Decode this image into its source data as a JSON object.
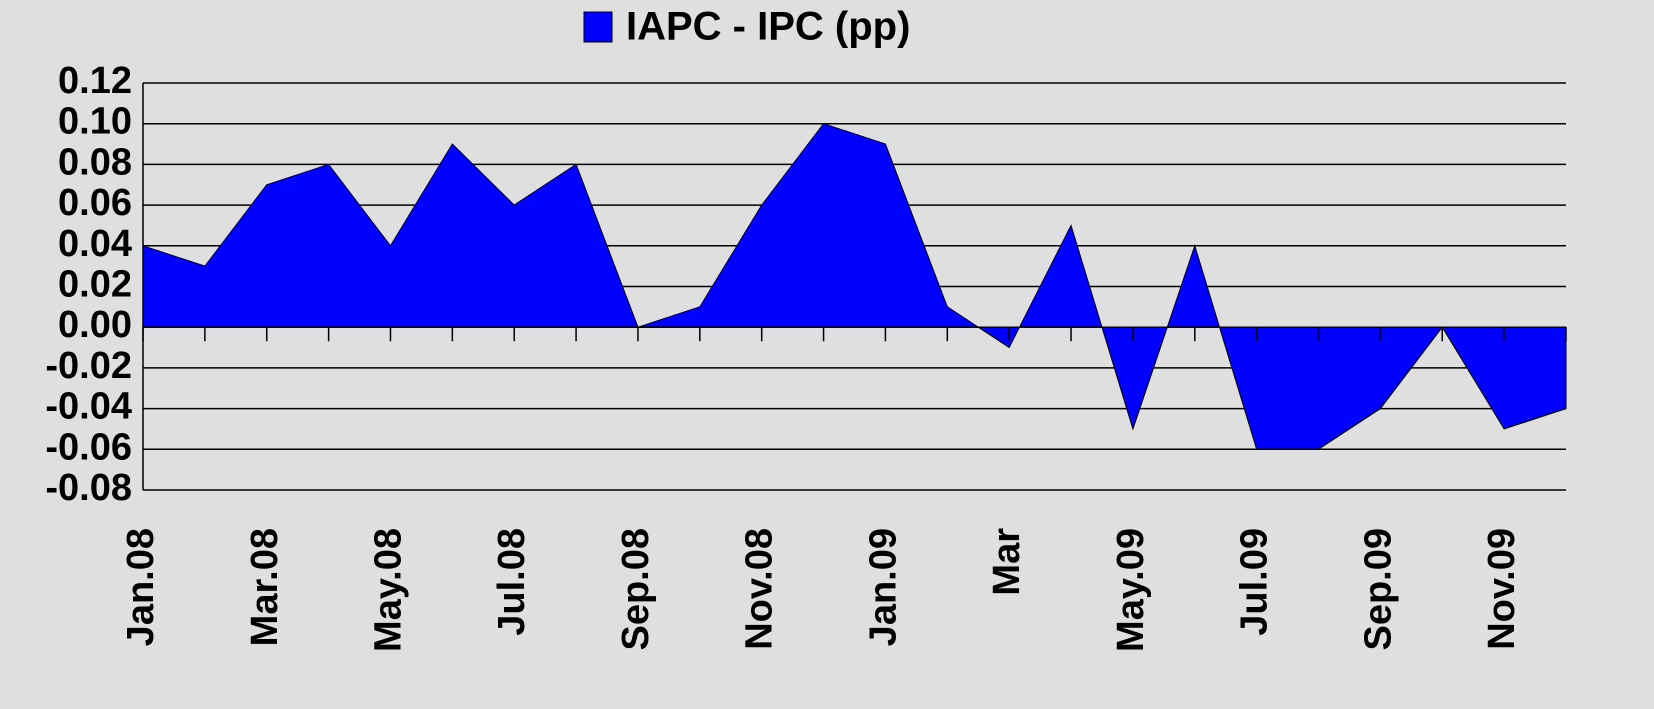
{
  "chart_data": {
    "type": "area",
    "categories": [
      "Jan.08",
      null,
      "Mar.08",
      null,
      "May.08",
      null,
      "Jul.08",
      null,
      "Sep.08",
      null,
      "Nov.08",
      null,
      "Jan.09",
      null,
      "Mar",
      null,
      "May.09",
      null,
      "Jul.09",
      null,
      "Sep.09",
      null,
      "Nov.09",
      null
    ],
    "series": [
      {
        "name": "IAPC - IPC (pp)",
        "color": "#0000ff",
        "values": [
          0.04,
          0.03,
          0.07,
          0.08,
          0.04,
          0.09,
          0.06,
          0.08,
          0.0,
          0.01,
          0.06,
          0.1,
          0.09,
          0.01,
          -0.01,
          0.05,
          -0.05,
          0.04,
          -0.06,
          -0.06,
          -0.04,
          0.0,
          -0.05,
          -0.04
        ]
      }
    ],
    "ylim": [
      -0.08,
      0.12
    ],
    "yticks": [
      {
        "value": -0.08,
        "label": "-0.08"
      },
      {
        "value": -0.06,
        "label": "-0.06"
      },
      {
        "value": -0.04,
        "label": "-0.04"
      },
      {
        "value": -0.02,
        "label": "-0.02"
      },
      {
        "value": 0,
        "label": "0.00"
      },
      {
        "value": 0.02,
        "label": "0.02"
      },
      {
        "value": 0.04,
        "label": "0.04"
      },
      {
        "value": 0.06,
        "label": "0.06"
      },
      {
        "value": 0.08,
        "label": "0.08"
      },
      {
        "value": 0.1,
        "label": "0.10"
      },
      {
        "value": 0.12,
        "label": "0.12"
      }
    ],
    "grid": true,
    "legend": "top"
  }
}
